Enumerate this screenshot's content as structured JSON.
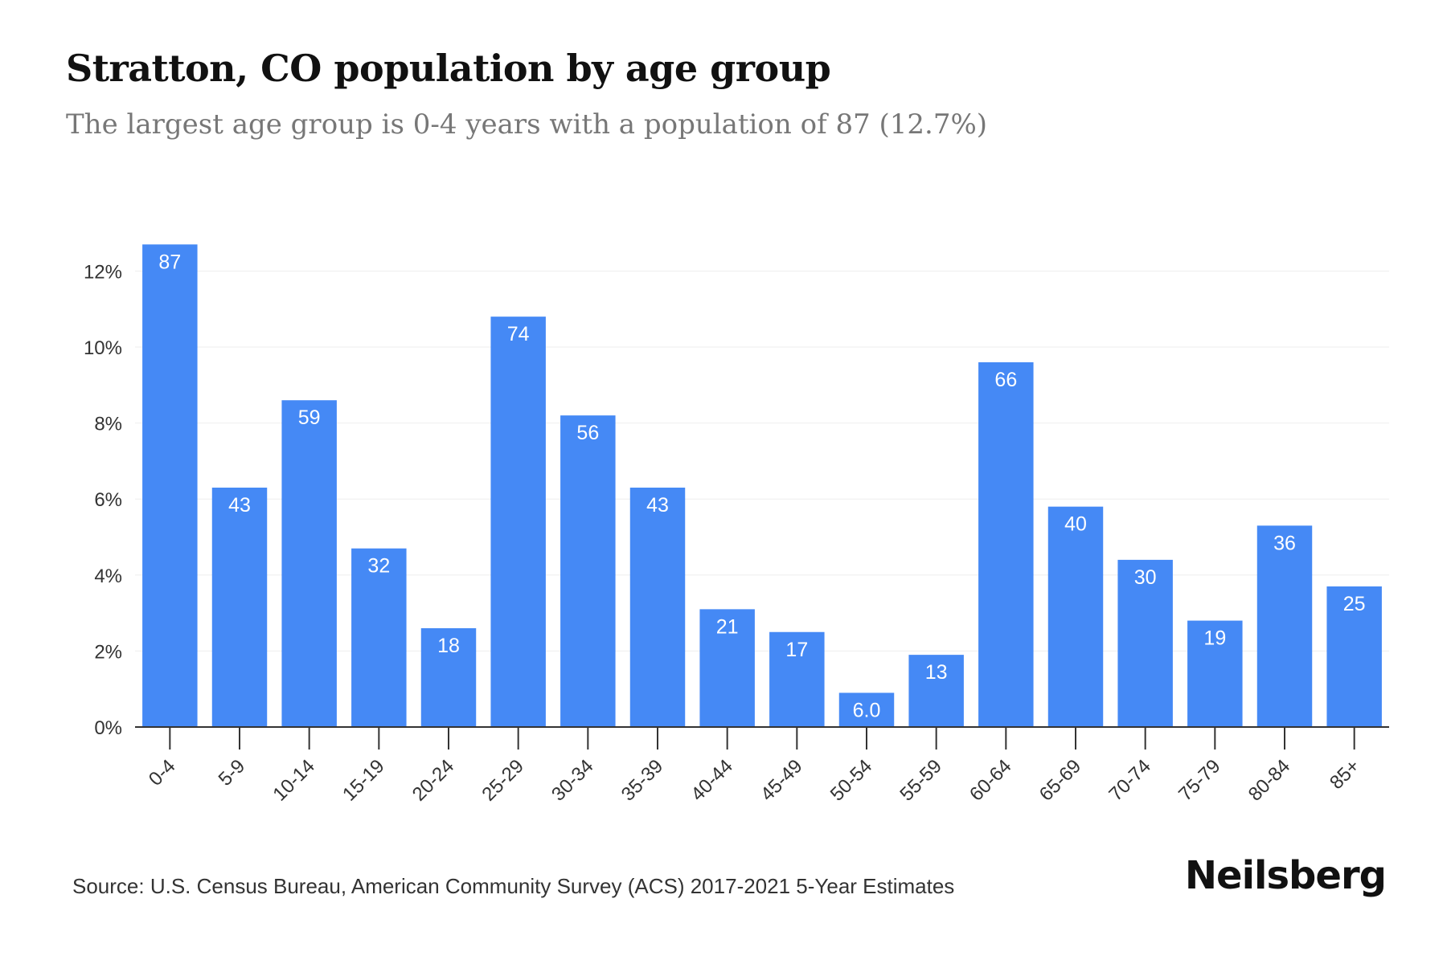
{
  "header": {
    "title": "Stratton, CO population by age group",
    "subtitle": "The largest age group is 0-4 years with a population of 87 (12.7%)"
  },
  "footer": {
    "source": "Source: U.S. Census Bureau, American Community Survey (ACS) 2017-2021 5-Year Estimates",
    "logo": "Neilsberg"
  },
  "chart_data": {
    "type": "bar",
    "categories": [
      "0-4",
      "5-9",
      "10-14",
      "15-19",
      "20-24",
      "25-29",
      "30-34",
      "35-39",
      "40-44",
      "45-49",
      "50-54",
      "55-59",
      "60-64",
      "65-69",
      "70-74",
      "75-79",
      "80-84",
      "85+"
    ],
    "values": [
      12.7,
      6.3,
      8.6,
      4.7,
      2.6,
      10.8,
      8.2,
      6.3,
      3.1,
      2.5,
      0.9,
      1.9,
      9.6,
      5.8,
      4.4,
      2.8,
      5.3,
      3.7
    ],
    "labels": [
      "87",
      "43",
      "59",
      "32",
      "18",
      "74",
      "56",
      "43",
      "21",
      "17",
      "6.0",
      "13",
      "66",
      "40",
      "30",
      "19",
      "36",
      "25"
    ],
    "yticks": [
      0,
      2,
      4,
      6,
      8,
      10,
      12
    ],
    "ytick_labels": [
      "0%",
      "2%",
      "4%",
      "6%",
      "8%",
      "10%",
      "12%"
    ],
    "ylim": [
      0,
      13.5
    ],
    "grid": true,
    "colors": {
      "bar": "#4589f5",
      "label": "#ffffff",
      "axis": "#333333",
      "grid": "#eeeeee",
      "tick_text": "#333333"
    }
  }
}
